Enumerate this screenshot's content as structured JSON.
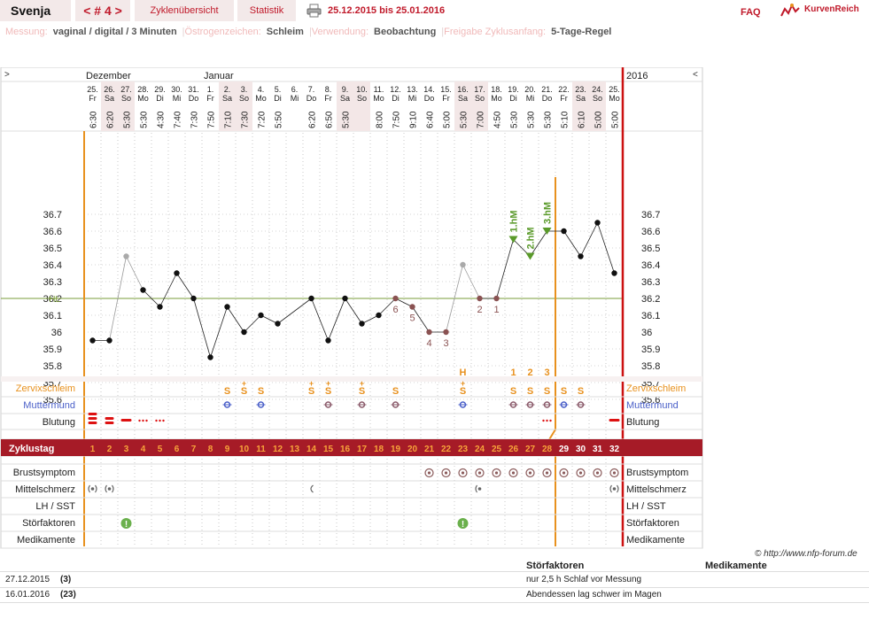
{
  "header": {
    "user": "Svenja",
    "cycle_nav": "< # 4 >",
    "overview": "Zyklenübersicht",
    "stats": "Statistik",
    "date_range": "25.12.2015 bis 25.01.2016",
    "faq": "FAQ",
    "brand": "KurvenReich"
  },
  "settings": [
    {
      "label": "Messung:",
      "value": "vaginal / digital / 3 Minuten"
    },
    {
      "label": "Östrogenzeichen:",
      "value": "Schleim"
    },
    {
      "label": "Verwendung:",
      "value": "Beobachtung"
    },
    {
      "label": "Freigabe Zyklusanfang:",
      "value": "5-Tage-Regel"
    }
  ],
  "calendar": {
    "nav_left": ">",
    "nav_right": "<",
    "year": "2016",
    "months": [
      {
        "label": "Dezember",
        "col": 0
      },
      {
        "label": "Januar",
        "col": 7
      }
    ],
    "days": [
      {
        "date": "25.",
        "dow": "Fr",
        "time": "6:30"
      },
      {
        "date": "26.",
        "dow": "Sa",
        "time": "6:20"
      },
      {
        "date": "27.",
        "dow": "So",
        "time": "5:30"
      },
      {
        "date": "28.",
        "dow": "Mo",
        "time": "5:30"
      },
      {
        "date": "29.",
        "dow": "Di",
        "time": "4:30"
      },
      {
        "date": "30.",
        "dow": "Mi",
        "time": "7:40"
      },
      {
        "date": "31.",
        "dow": "Do",
        "time": "7:30"
      },
      {
        "date": "1.",
        "dow": "Fr",
        "time": "7:50"
      },
      {
        "date": "2.",
        "dow": "Sa",
        "time": "7:10"
      },
      {
        "date": "3.",
        "dow": "So",
        "time": "7:30"
      },
      {
        "date": "4.",
        "dow": "Mo",
        "time": "7:20"
      },
      {
        "date": "5.",
        "dow": "Di",
        "time": "5:50"
      },
      {
        "date": "6.",
        "dow": "Mi",
        "time": ""
      },
      {
        "date": "7.",
        "dow": "Do",
        "time": "6:20"
      },
      {
        "date": "8.",
        "dow": "Fr",
        "time": "6:50"
      },
      {
        "date": "9.",
        "dow": "Sa",
        "time": "5:30"
      },
      {
        "date": "10.",
        "dow": "So",
        "time": ""
      },
      {
        "date": "11.",
        "dow": "Mo",
        "time": "8:00"
      },
      {
        "date": "12.",
        "dow": "Di",
        "time": "7:50"
      },
      {
        "date": "13.",
        "dow": "Mi",
        "time": "9:10"
      },
      {
        "date": "14.",
        "dow": "Do",
        "time": "6:40"
      },
      {
        "date": "15.",
        "dow": "Fr",
        "time": "5:00"
      },
      {
        "date": "16.",
        "dow": "Sa",
        "time": "5:30"
      },
      {
        "date": "17.",
        "dow": "So",
        "time": "7:00"
      },
      {
        "date": "18.",
        "dow": "Mo",
        "time": "4:50"
      },
      {
        "date": "19.",
        "dow": "Di",
        "time": "5:30"
      },
      {
        "date": "20.",
        "dow": "Mi",
        "time": "5:30"
      },
      {
        "date": "21.",
        "dow": "Do",
        "time": "5:30"
      },
      {
        "date": "22.",
        "dow": "Fr",
        "time": "5:10"
      },
      {
        "date": "23.",
        "dow": "Sa",
        "time": "6:10"
      },
      {
        "date": "24.",
        "dow": "So",
        "time": "5:00"
      },
      {
        "date": "25.",
        "dow": "Mo",
        "time": "5:00"
      }
    ],
    "cycle_days": [
      "1",
      "2",
      "3",
      "4",
      "5",
      "6",
      "7",
      "8",
      "9",
      "10",
      "11",
      "12",
      "13",
      "14",
      "15",
      "16",
      "17",
      "18",
      "19",
      "20",
      "21",
      "22",
      "23",
      "24",
      "25",
      "26",
      "27",
      "28",
      "29",
      "30",
      "31",
      "32"
    ]
  },
  "chart_data": {
    "type": "line",
    "ylabel": "",
    "yticks": [
      35.6,
      35.7,
      35.8,
      35.9,
      36,
      36.1,
      36.2,
      36.3,
      36.4,
      36.5,
      36.6,
      36.7
    ],
    "ytick_labels": [
      "35.6",
      "35.7",
      "35.8",
      "35.9",
      "36",
      "36.1",
      "36.2",
      "36.3",
      "36.4",
      "36.5",
      "36.6",
      "36.7"
    ],
    "coverline_label": "HL",
    "coverline_value": 36.2,
    "temperatures": [
      35.95,
      35.95,
      36.45,
      36.25,
      36.15,
      36.35,
      36.2,
      35.85,
      36.15,
      36.0,
      36.1,
      36.05,
      null,
      36.2,
      35.95,
      36.2,
      36.05,
      36.1,
      36.2,
      36.15,
      36.0,
      36.0,
      36.4,
      36.2,
      36.2,
      36.55,
      36.45,
      36.6,
      36.6,
      36.45,
      36.65,
      36.35
    ],
    "excluded_days": [
      3,
      23
    ],
    "low_count_labels": [
      {
        "day": 19,
        "label": "6"
      },
      {
        "day": 20,
        "label": "5"
      },
      {
        "day": 21,
        "label": "4"
      },
      {
        "day": 22,
        "label": "3"
      },
      {
        "day": 24,
        "label": "2"
      },
      {
        "day": 25,
        "label": "1"
      }
    ],
    "high_markers": [
      {
        "day": 26,
        "label": "1.hM"
      },
      {
        "day": 27,
        "label": "2.hM"
      },
      {
        "day": 28,
        "label": "3.hM"
      }
    ],
    "evaluation_day": 28
  },
  "rows": {
    "zervix_label": "Zervixschleim",
    "zervix": [
      {
        "day": 9,
        "sym": "S",
        "sup": ""
      },
      {
        "day": 10,
        "sym": "S",
        "sup": "+"
      },
      {
        "day": 11,
        "sym": "S",
        "sup": ""
      },
      {
        "day": 14,
        "sym": "S",
        "sup": "+"
      },
      {
        "day": 15,
        "sym": "S",
        "sup": "+"
      },
      {
        "day": 17,
        "sym": "S",
        "sup": "+"
      },
      {
        "day": 19,
        "sym": "S",
        "sup": ""
      },
      {
        "day": 23,
        "sym": "S",
        "sup": "+"
      },
      {
        "day": 26,
        "sym": "S",
        "sup": ""
      },
      {
        "day": 27,
        "sym": "S",
        "sup": ""
      },
      {
        "day": 28,
        "sym": "S",
        "sup": ""
      },
      {
        "day": 29,
        "sym": "S",
        "sup": ""
      },
      {
        "day": 30,
        "sym": "S",
        "sup": ""
      }
    ],
    "zervix_top": [
      {
        "day": 23,
        "label": "H"
      },
      {
        "day": 26,
        "label": "1"
      },
      {
        "day": 27,
        "label": "2"
      },
      {
        "day": 28,
        "label": "3"
      }
    ],
    "mumu_label": "Muttermund",
    "mumu": [
      9,
      11,
      15,
      17,
      19,
      23,
      26,
      27,
      28,
      29,
      30
    ],
    "blutung_label": "Blutung",
    "blutung": [
      {
        "day": 1,
        "kind": "heavy"
      },
      {
        "day": 2,
        "kind": "medium"
      },
      {
        "day": 3,
        "kind": "light"
      },
      {
        "day": 4,
        "kind": "spot"
      },
      {
        "day": 5,
        "kind": "spot"
      },
      {
        "day": 28,
        "kind": "spot"
      },
      {
        "day": 32,
        "kind": "light"
      }
    ],
    "zyklustag_label": "Zyklustag",
    "brust_label": "Brustsymptom",
    "brust": [
      21,
      22,
      23,
      24,
      25,
      26,
      27,
      28,
      29,
      30,
      31,
      32
    ],
    "mittel_label": "Mittelschmerz",
    "mittel": [
      1,
      2,
      14,
      24,
      32
    ],
    "lh_label": "LH / SST",
    "stoer_label": "Störfaktoren",
    "stoer": [
      3,
      23
    ],
    "medi_label": "Medikamente"
  },
  "credit": "© http://www.nfp-forum.de",
  "notes": {
    "col_stoer": "Störfaktoren",
    "col_medi": "Medikamente",
    "entries": [
      {
        "date": "27.12.2015",
        "day": "(3)",
        "text": "nur 2,5 h Schlaf vor Messung"
      },
      {
        "date": "16.01.2016",
        "day": "(23)",
        "text": "Abendessen lag schwer im Magen"
      }
    ]
  },
  "colors": {
    "accent": "#c0192a",
    "cycle_bar": "#a61b27",
    "orange": "#e8911e",
    "blue": "#4a5fc8",
    "green": "#5a9a2a",
    "cover": "#7a9c3a",
    "brown": "#8a5252"
  }
}
